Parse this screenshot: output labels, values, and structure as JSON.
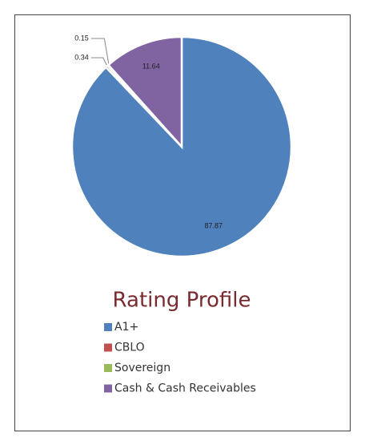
{
  "chart_data": {
    "type": "pie",
    "title": "Rating Profile",
    "categories": [
      "A1+",
      "CBLO",
      "Sovereign",
      "Cash & Cash Receivables"
    ],
    "values": [
      87.87,
      0.34,
      0.15,
      11.64
    ],
    "colors": [
      "#4f81bd",
      "#c0504d",
      "#9bbb59",
      "#8064a2"
    ],
    "legend": "bottom"
  }
}
